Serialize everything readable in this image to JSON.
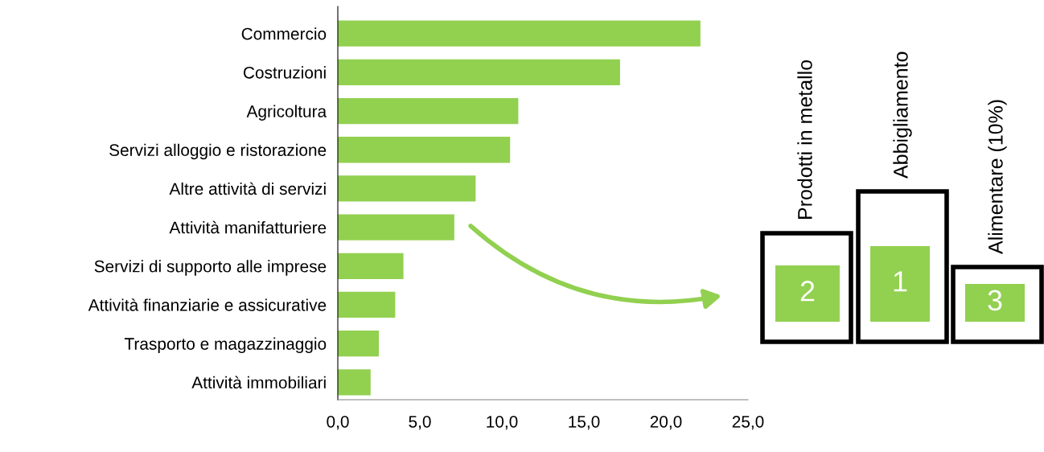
{
  "chart_data": {
    "type": "bar",
    "orientation": "horizontal",
    "categories": [
      "Commercio",
      "Costruzioni",
      "Agricoltura",
      "Servizi alloggio e ristorazione",
      "Altre attività di servizi",
      "Attività manifatturiere",
      "Servizi di supporto alle imprese",
      "Attività finanziarie e assicurative",
      "Trasporto e magazzinaggio",
      "Attività immobiliari"
    ],
    "values": [
      22.1,
      17.2,
      11.0,
      10.5,
      8.4,
      7.1,
      4.0,
      3.5,
      2.5,
      2.0
    ],
    "color": "#92d050",
    "xlim": [
      0,
      25
    ],
    "xticks": [
      {
        "value": 0,
        "label": "0,0"
      },
      {
        "value": 5,
        "label": "5,0"
      },
      {
        "value": 10,
        "label": "10,0"
      },
      {
        "value": 15,
        "label": "15,0"
      },
      {
        "value": 20,
        "label": "20,0"
      },
      {
        "value": 25,
        "label": "25,0"
      }
    ],
    "grid": false,
    "annotations": [
      "Prodotti in metallo",
      "Abbigliamento",
      "Alimentare (10%)",
      "2",
      "1",
      "3"
    ]
  }
}
